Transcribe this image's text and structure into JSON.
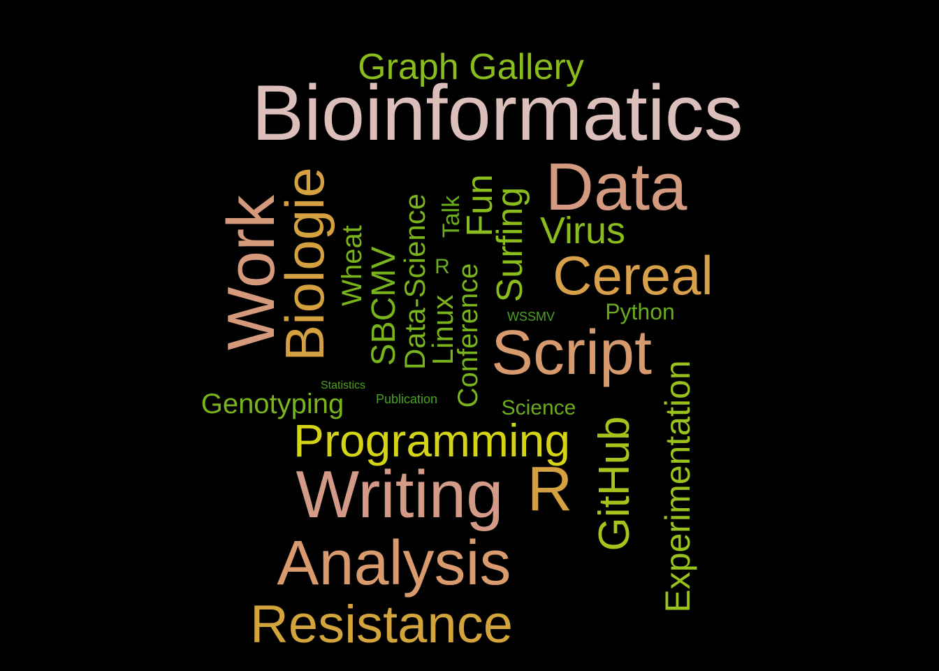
{
  "words": [
    {
      "id": "bioinformatics",
      "text": "Bioinformatics",
      "weight": 10,
      "color": "#dcbfbb",
      "vertical": false
    },
    {
      "id": "data",
      "text": "Data",
      "weight": 8,
      "color": "#d49a80",
      "vertical": false
    },
    {
      "id": "writing",
      "text": "Writing",
      "weight": 8,
      "color": "#d49a88",
      "vertical": false
    },
    {
      "id": "work",
      "text": "Work",
      "weight": 8,
      "color": "#d59a7b",
      "vertical": true
    },
    {
      "id": "script",
      "text": "Script",
      "weight": 8,
      "color": "#d69a6e",
      "vertical": false
    },
    {
      "id": "analysis",
      "text": "Analysis",
      "weight": 8,
      "color": "#d99a6e",
      "vertical": false
    },
    {
      "id": "cereal",
      "text": "Cereal",
      "weight": 7,
      "color": "#d8a04a",
      "vertical": false
    },
    {
      "id": "biologie",
      "text": "Biologie",
      "weight": 7,
      "color": "#d4a040",
      "vertical": true
    },
    {
      "id": "r-large",
      "text": "R",
      "weight": 7,
      "color": "#d4a040",
      "vertical": false
    },
    {
      "id": "resistance",
      "text": "Resistance",
      "weight": 7,
      "color": "#d4a43c",
      "vertical": false
    },
    {
      "id": "programming",
      "text": "Programming",
      "weight": 6,
      "color": "#d4d416",
      "vertical": false
    },
    {
      "id": "github",
      "text": "GitHub",
      "weight": 6,
      "color": "#a8c41c",
      "vertical": true
    },
    {
      "id": "experimentation",
      "text": "Experimentation",
      "weight": 5,
      "color": "#9ac21c",
      "vertical": true
    },
    {
      "id": "graph-gallery",
      "text": "Graph Gallery",
      "weight": 5,
      "color": "#8abc1c",
      "vertical": false
    },
    {
      "id": "virus",
      "text": "Virus",
      "weight": 5,
      "color": "#8abc1c",
      "vertical": false
    },
    {
      "id": "fun",
      "text": "Fun",
      "weight": 5,
      "color": "#8abc1c",
      "vertical": true
    },
    {
      "id": "surfing",
      "text": "Surfing",
      "weight": 5,
      "color": "#8abc1c",
      "vertical": true
    },
    {
      "id": "sbcmv",
      "text": "SBCMV",
      "weight": 4,
      "color": "#7ab41c",
      "vertical": true
    },
    {
      "id": "data-science",
      "text": "Data-Science",
      "weight": 4,
      "color": "#7ab41c",
      "vertical": true
    },
    {
      "id": "linux",
      "text": "Linux",
      "weight": 4,
      "color": "#7ab41c",
      "vertical": true
    },
    {
      "id": "conference",
      "text": "Conference",
      "weight": 4,
      "color": "#7ab41c",
      "vertical": true
    },
    {
      "id": "wheat",
      "text": "Wheat",
      "weight": 4,
      "color": "#7ab41c",
      "vertical": true
    },
    {
      "id": "genotyping",
      "text": "Genotyping",
      "weight": 4,
      "color": "#7ab41c",
      "vertical": false
    },
    {
      "id": "talk",
      "text": "Talk",
      "weight": 3,
      "color": "#6aac1c",
      "vertical": true
    },
    {
      "id": "python",
      "text": "Python",
      "weight": 3,
      "color": "#6aac1c",
      "vertical": false
    },
    {
      "id": "science",
      "text": "Science",
      "weight": 3,
      "color": "#6aac1c",
      "vertical": false
    },
    {
      "id": "r-small",
      "text": "R",
      "weight": 3,
      "color": "#6aac1c",
      "vertical": false
    },
    {
      "id": "wssmv",
      "text": "WSSMV",
      "weight": 2,
      "color": "#4aa41c",
      "vertical": false
    },
    {
      "id": "statistics",
      "text": "Statistics",
      "weight": 1,
      "color": "#4aa41c",
      "vertical": false
    },
    {
      "id": "publication",
      "text": "Publication",
      "weight": 1,
      "color": "#4aa41c",
      "vertical": false
    }
  ]
}
